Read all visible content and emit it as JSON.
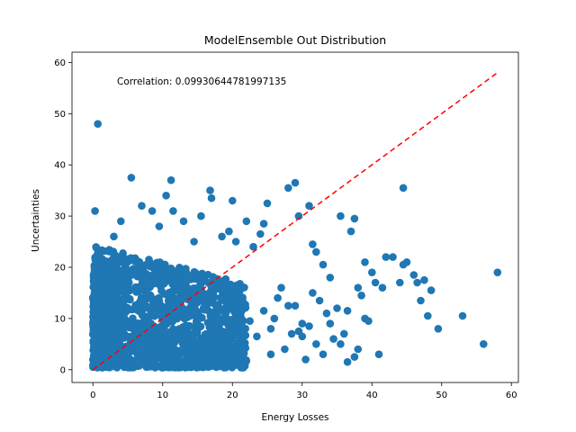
{
  "chart_data": {
    "type": "scatter",
    "title": "ModelEnsemble Out Distribution",
    "xlabel": "Energy Losses",
    "ylabel": "Uncertainties",
    "annotation": "Correlation: 0.09930644781997135",
    "xlim": [
      -3,
      61
    ],
    "ylim": [
      -2.5,
      62
    ],
    "x_ticks": [
      0,
      10,
      20,
      30,
      40,
      50,
      60
    ],
    "y_ticks": [
      0,
      10,
      20,
      30,
      40,
      50,
      60
    ],
    "grid": false,
    "point_color": "#1f77b4",
    "reference_line": {
      "style": "dashed",
      "color": "#ff0000",
      "x": [
        0,
        58
      ],
      "y": [
        0,
        58
      ]
    },
    "series": [
      {
        "x": [
          0.7,
          0.3,
          5.5,
          11.2,
          11.5,
          10.5,
          16.8,
          17.0,
          20.0,
          24.0,
          25.0,
          28.0,
          29.0,
          29.5,
          31.0,
          31.5,
          32.0,
          33.0,
          34.0,
          35.5,
          36.5,
          37.5,
          38.0,
          38.5,
          39.0,
          39.5,
          40.0,
          41.5,
          42.0,
          44.0,
          44.5,
          45.0,
          46.5,
          47.5,
          48.0,
          48.5,
          49.5,
          53.0,
          56.0,
          58.0,
          43.0,
          40.5,
          37.0,
          35.0,
          34.5,
          33.5,
          32.5,
          31.0,
          30.0,
          29.0,
          28.5,
          27.5,
          26.5,
          26.0,
          25.5,
          24.5,
          23.5,
          22.5,
          21.5,
          21.0,
          36.0,
          36.5,
          35.5,
          34.0,
          33.0,
          32.0,
          31.5,
          30.5,
          30.0,
          29.5,
          39.0,
          38.0,
          37.5,
          41.0,
          44.5,
          46.0,
          47.0,
          18.5,
          19.5,
          20.5,
          22.0,
          23.0,
          24.5,
          27.0,
          28.0,
          3.0,
          4.0,
          7.0,
          8.5,
          9.5,
          13.0,
          14.5,
          15.5,
          6.5,
          12.5,
          2.0,
          1.5,
          4.5,
          13.5,
          16.0,
          18.0,
          10.0,
          12.0,
          21.0,
          25.5
        ],
        "y": [
          48.0,
          31.0,
          37.5,
          37.0,
          31.0,
          34.0,
          35.0,
          33.5,
          33.0,
          26.5,
          32.5,
          35.5,
          36.5,
          30.0,
          32.0,
          24.5,
          23.0,
          20.5,
          18.0,
          30.0,
          11.5,
          29.5,
          16.0,
          14.5,
          21.0,
          9.5,
          19.0,
          16.0,
          22.0,
          17.0,
          35.5,
          21.0,
          17.0,
          17.5,
          10.5,
          15.5,
          8.0,
          10.5,
          5.0,
          19.0,
          22.0,
          17.0,
          27.0,
          12.0,
          6.0,
          11.0,
          13.5,
          8.5,
          9.0,
          12.5,
          7.0,
          4.0,
          14.0,
          10.0,
          8.0,
          11.5,
          6.5,
          9.5,
          3.5,
          12.0,
          7.0,
          1.5,
          5.0,
          9.0,
          3.0,
          5.0,
          15.0,
          2.0,
          6.5,
          7.5,
          10.0,
          4.0,
          2.5,
          3.0,
          20.5,
          18.5,
          13.5,
          26.0,
          27.0,
          25.0,
          29.0,
          24.0,
          28.5,
          16.0,
          12.5,
          26.0,
          29.0,
          32.0,
          31.0,
          28.0,
          29.0,
          25.0,
          30.0,
          4.0,
          3.0,
          1.0,
          0.5,
          0.5,
          1.0,
          2.0,
          1.5,
          0.5,
          1.0,
          2.5,
          3.0
        ]
      }
    ],
    "dense_cluster": {
      "description_of_mass": "dense cloud",
      "x_range": [
        0,
        22
      ],
      "y_range": [
        0,
        25
      ]
    }
  }
}
